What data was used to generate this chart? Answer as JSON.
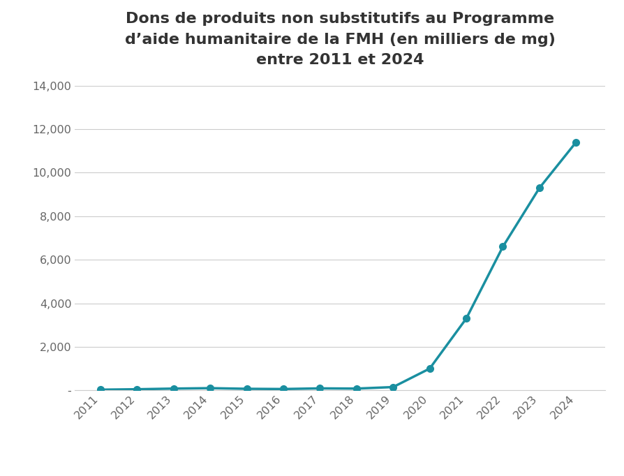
{
  "title_line1": "Dons de produits non substitutifs au Programme",
  "title_line2": "d’aide humanitaire de la FMH (en milliers de mg)",
  "title_line3": "entre 2011 et 2024",
  "years": [
    2011,
    2012,
    2013,
    2014,
    2015,
    2016,
    2017,
    2018,
    2019,
    2020,
    2021,
    2022,
    2023,
    2024
  ],
  "values": [
    30,
    50,
    80,
    100,
    70,
    60,
    90,
    80,
    150,
    1000,
    3300,
    6600,
    9300,
    11400
  ],
  "line_color": "#1a8fa0",
  "marker_color": "#1a8fa0",
  "background_color": "#ffffff",
  "ylim": [
    0,
    14000
  ],
  "yticks": [
    0,
    2000,
    4000,
    6000,
    8000,
    10000,
    12000,
    14000
  ],
  "ytick_labels": [
    "-",
    "2,000",
    "4,000",
    "6,000",
    "8,000",
    "10,000",
    "12,000",
    "14,000"
  ],
  "title_fontsize": 16,
  "tick_fontsize": 11.5,
  "grid_color": "#cccccc",
  "tick_color": "#666666"
}
